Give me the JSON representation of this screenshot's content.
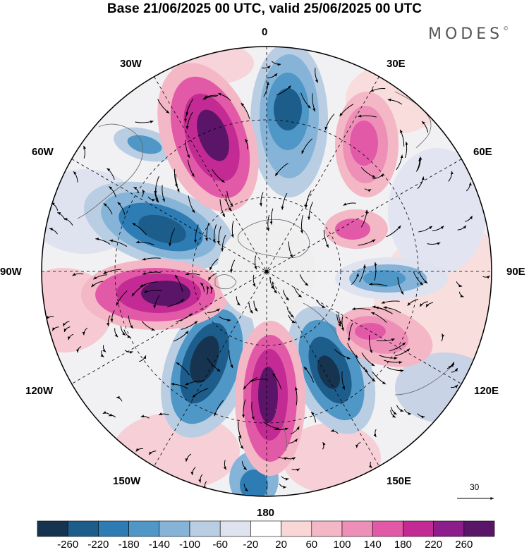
{
  "title": "Base 21/06/2025 00 UTC, valid 25/06/2025 00 UTC",
  "logo": "MODES",
  "logo_mark": "©",
  "longitude_labels": {
    "lon_0": "0",
    "lon_30e": "30E",
    "lon_60e": "60E",
    "lon_90e": "90E",
    "lon_120e": "120E",
    "lon_150e": "150E",
    "lon_180": "180",
    "lon_150w": "150W",
    "lon_120w": "120W",
    "lon_90w": "90W",
    "lon_60w": "60W",
    "lon_30w": "30W"
  },
  "reference_vector_label": "30",
  "colorbar": {
    "tick_labels": [
      "-260",
      "-220",
      "-180",
      "-140",
      "-100",
      "-60",
      "-20",
      "20",
      "60",
      "100",
      "140",
      "180",
      "220",
      "260"
    ],
    "colors": [
      "#16344f",
      "#1d5d8c",
      "#2d7cb4",
      "#4f97c6",
      "#86b4d8",
      "#b9cde3",
      "#dfe2ef",
      "#ffffff",
      "#f9d7d7",
      "#f4b7c6",
      "#ee8fb8",
      "#e25aa7",
      "#c42a94",
      "#8c1d8a",
      "#5b1568"
    ]
  }
}
